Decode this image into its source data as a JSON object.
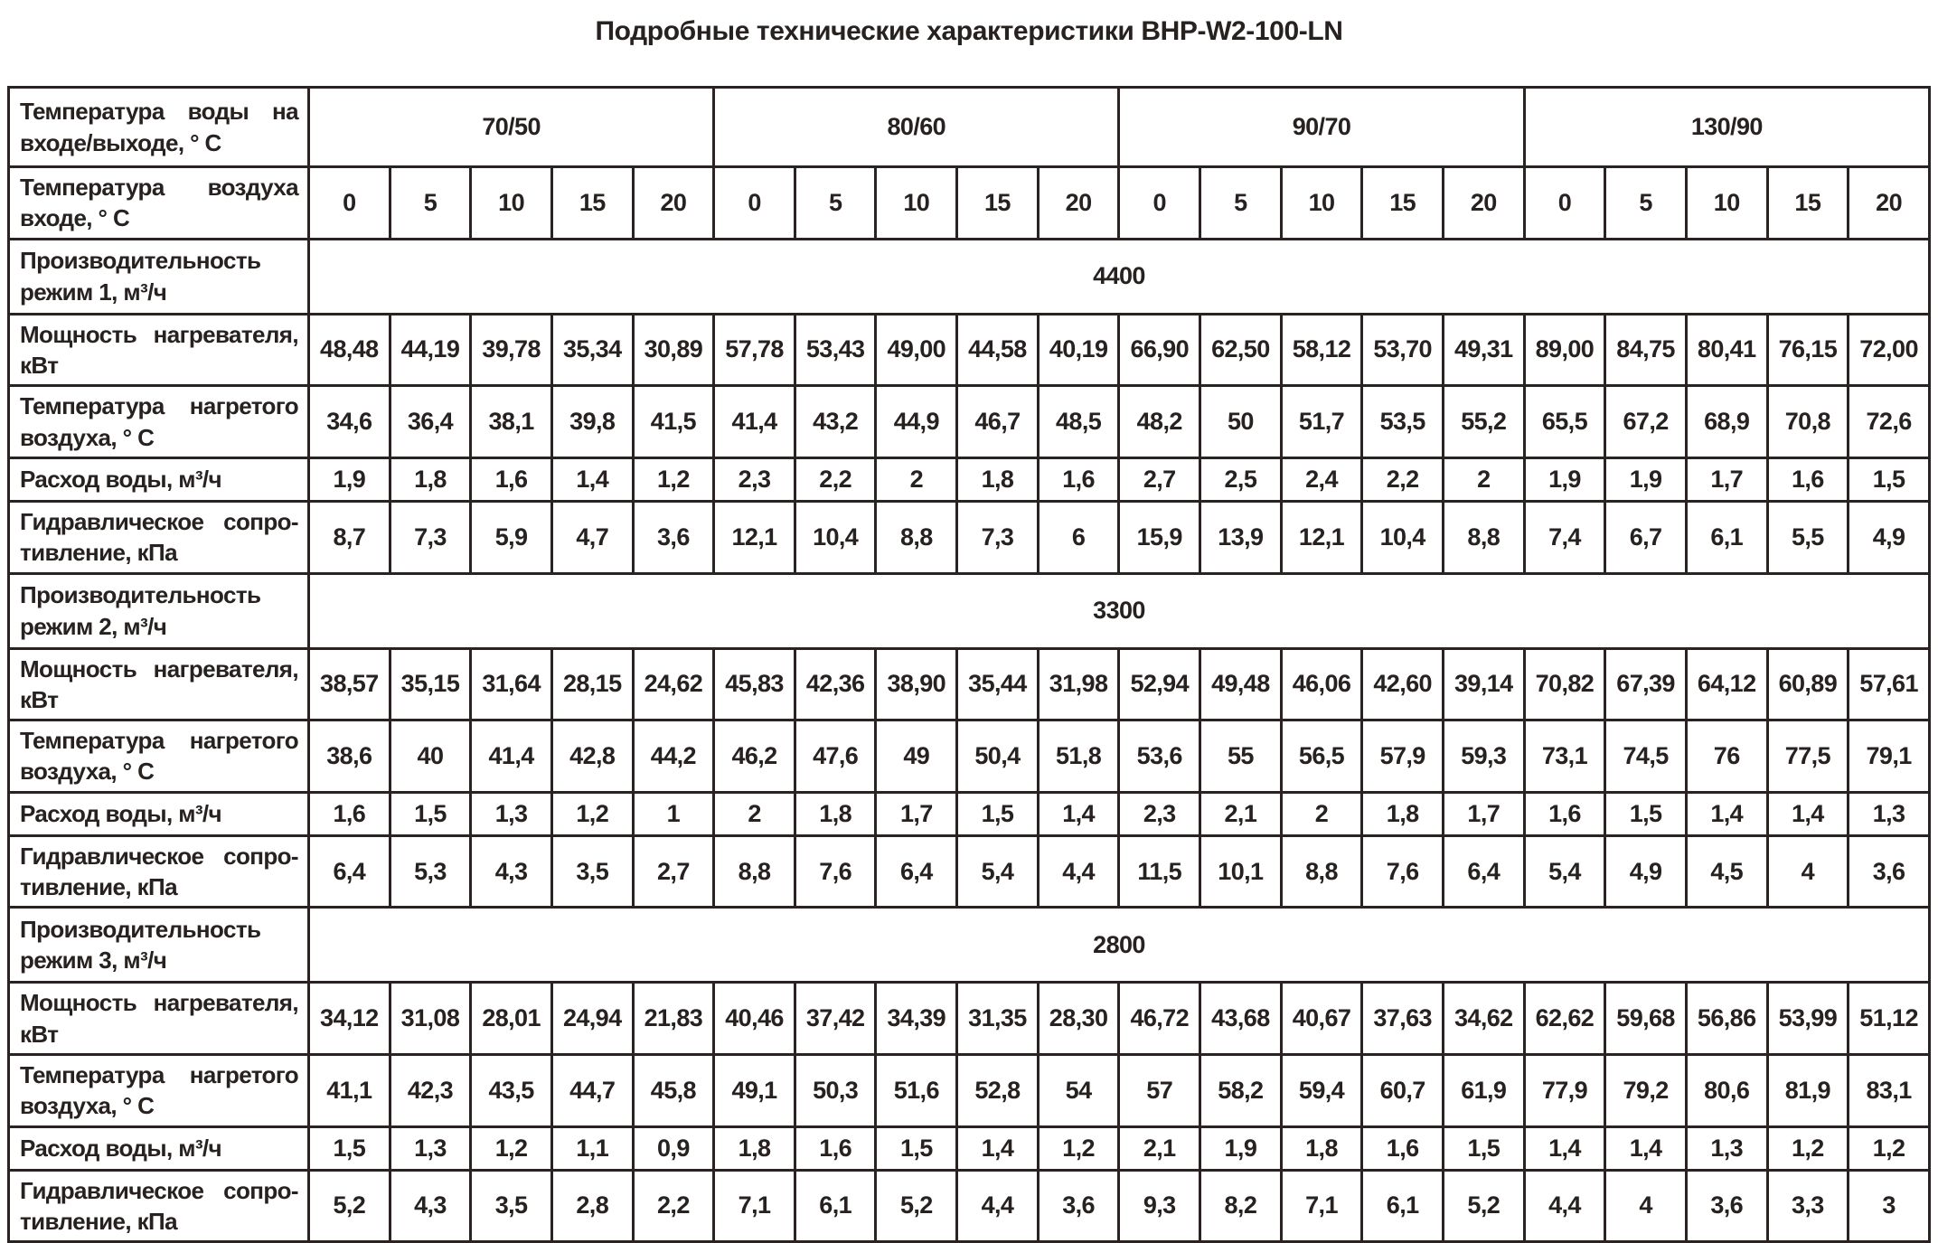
{
  "title": "Подробные технические характеристики BHP-W2-100-LN",
  "colors": {
    "text": "#272120",
    "border": "#2b2321",
    "background": "#ffffff"
  },
  "table": {
    "water_temp_label": "Температура воды на входе/выходе, ° С",
    "air_temp_label": "Температура воздуха входе, ° С",
    "water_temp_groups": [
      "70/50",
      "80/60",
      "90/70",
      "130/90"
    ],
    "air_temps": [
      "0",
      "5",
      "10",
      "15",
      "20"
    ],
    "sections": [
      {
        "capacity_label": "Производительность режим 1, м³/ч",
        "capacity_value": "4400",
        "rows": [
          {
            "label": "Мощность нагревателя, кВт",
            "values": [
              "48,48",
              "44,19",
              "39,78",
              "35,34",
              "30,89",
              "57,78",
              "53,43",
              "49,00",
              "44,58",
              "40,19",
              "66,90",
              "62,50",
              "58,12",
              "53,70",
              "49,31",
              "89,00",
              "84,75",
              "80,41",
              "76,15",
              "72,00"
            ]
          },
          {
            "label": "Температура нагретого воздуха, ° С",
            "values": [
              "34,6",
              "36,4",
              "38,1",
              "39,8",
              "41,5",
              "41,4",
              "43,2",
              "44,9",
              "46,7",
              "48,5",
              "48,2",
              "50",
              "51,7",
              "53,5",
              "55,2",
              "65,5",
              "67,2",
              "68,9",
              "70,8",
              "72,6"
            ]
          },
          {
            "label": "Расход воды, м³/ч",
            "values": [
              "1,9",
              "1,8",
              "1,6",
              "1,4",
              "1,2",
              "2,3",
              "2,2",
              "2",
              "1,8",
              "1,6",
              "2,7",
              "2,5",
              "2,4",
              "2,2",
              "2",
              "1,9",
              "1,9",
              "1,7",
              "1,6",
              "1,5"
            ]
          },
          {
            "label": "Гидравлическое сопро-тивление, кПа",
            "values": [
              "8,7",
              "7,3",
              "5,9",
              "4,7",
              "3,6",
              "12,1",
              "10,4",
              "8,8",
              "7,3",
              "6",
              "15,9",
              "13,9",
              "12,1",
              "10,4",
              "8,8",
              "7,4",
              "6,7",
              "6,1",
              "5,5",
              "4,9"
            ]
          }
        ]
      },
      {
        "capacity_label": "Производительность режим 2, м³/ч",
        "capacity_value": "3300",
        "rows": [
          {
            "label": "Мощность нагревателя, кВт",
            "values": [
              "38,57",
              "35,15",
              "31,64",
              "28,15",
              "24,62",
              "45,83",
              "42,36",
              "38,90",
              "35,44",
              "31,98",
              "52,94",
              "49,48",
              "46,06",
              "42,60",
              "39,14",
              "70,82",
              "67,39",
              "64,12",
              "60,89",
              "57,61"
            ]
          },
          {
            "label": "Температура нагретого воздуха, ° С",
            "values": [
              "38,6",
              "40",
              "41,4",
              "42,8",
              "44,2",
              "46,2",
              "47,6",
              "49",
              "50,4",
              "51,8",
              "53,6",
              "55",
              "56,5",
              "57,9",
              "59,3",
              "73,1",
              "74,5",
              "76",
              "77,5",
              "79,1"
            ]
          },
          {
            "label": "Расход воды, м³/ч",
            "values": [
              "1,6",
              "1,5",
              "1,3",
              "1,2",
              "1",
              "2",
              "1,8",
              "1,7",
              "1,5",
              "1,4",
              "2,3",
              "2,1",
              "2",
              "1,8",
              "1,7",
              "1,6",
              "1,5",
              "1,4",
              "1,4",
              "1,3"
            ]
          },
          {
            "label": "Гидравлическое сопро-тивление, кПа",
            "values": [
              "6,4",
              "5,3",
              "4,3",
              "3,5",
              "2,7",
              "8,8",
              "7,6",
              "6,4",
              "5,4",
              "4,4",
              "11,5",
              "10,1",
              "8,8",
              "7,6",
              "6,4",
              "5,4",
              "4,9",
              "4,5",
              "4",
              "3,6"
            ]
          }
        ]
      },
      {
        "capacity_label": "Производительность режим 3, м³/ч",
        "capacity_value": "2800",
        "rows": [
          {
            "label": "Мощность нагревателя, кВт",
            "values": [
              "34,12",
              "31,08",
              "28,01",
              "24,94",
              "21,83",
              "40,46",
              "37,42",
              "34,39",
              "31,35",
              "28,30",
              "46,72",
              "43,68",
              "40,67",
              "37,63",
              "34,62",
              "62,62",
              "59,68",
              "56,86",
              "53,99",
              "51,12"
            ]
          },
          {
            "label": "Температура нагретого воздуха, ° С",
            "values": [
              "41,1",
              "42,3",
              "43,5",
              "44,7",
              "45,8",
              "49,1",
              "50,3",
              "51,6",
              "52,8",
              "54",
              "57",
              "58,2",
              "59,4",
              "60,7",
              "61,9",
              "77,9",
              "79,2",
              "80,6",
              "81,9",
              "83,1"
            ]
          },
          {
            "label": "Расход воды, м³/ч",
            "values": [
              "1,5",
              "1,3",
              "1,2",
              "1,1",
              "0,9",
              "1,8",
              "1,6",
              "1,5",
              "1,4",
              "1,2",
              "2,1",
              "1,9",
              "1,8",
              "1,6",
              "1,5",
              "1,4",
              "1,4",
              "1,3",
              "1,2",
              "1,2"
            ]
          },
          {
            "label": "Гидравлическое сопро-тивление, кПа",
            "values": [
              "5,2",
              "4,3",
              "3,5",
              "2,8",
              "2,2",
              "7,1",
              "6,1",
              "5,2",
              "4,4",
              "3,6",
              "9,3",
              "8,2",
              "7,1",
              "6,1",
              "5,2",
              "4,4",
              "4",
              "3,6",
              "3,3",
              "3"
            ]
          }
        ]
      }
    ]
  }
}
